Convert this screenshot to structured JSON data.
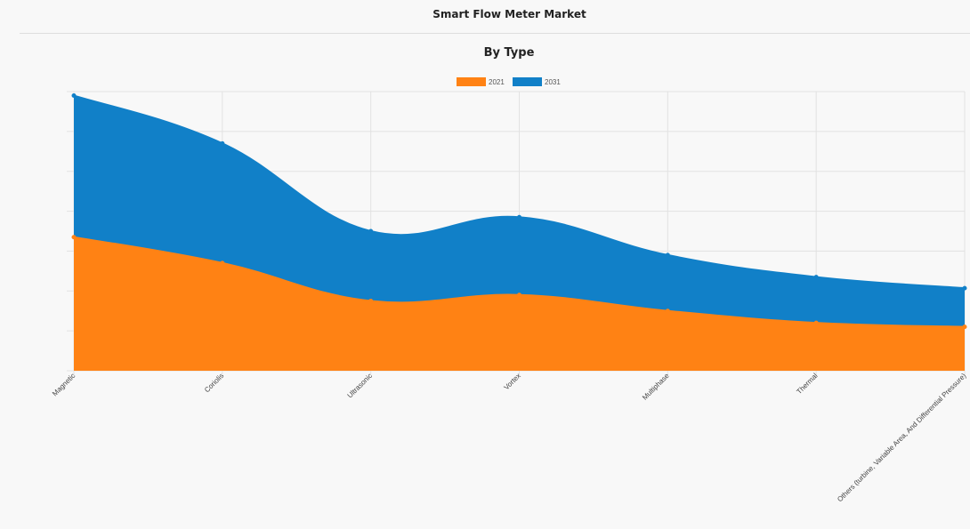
{
  "page": {
    "title": "Smart Flow Meter Market"
  },
  "colors": {
    "series_2021": "#ff8214",
    "series_2031": "#1180c8",
    "grid": "#e2e2e2",
    "background": "#f8f8f8"
  },
  "chart_data": {
    "type": "area",
    "title": "By Type",
    "stacked": true,
    "smooth": true,
    "xlabel": "",
    "ylabel": "",
    "y_tick_labels_visible": false,
    "grid": true,
    "legend": "top-center",
    "ylim": [
      0,
      7
    ],
    "categories": [
      "Magnetic",
      "Coriolis",
      "Ultrasonic",
      "Vortex",
      "Multiphase",
      "Thermal",
      "Others (turbine, Variable Area, And Differential Pressure)"
    ],
    "series": [
      {
        "name": "2021",
        "color": "#ff8214",
        "values": [
          3.35,
          2.7,
          1.75,
          1.9,
          1.5,
          1.2,
          1.1
        ]
      },
      {
        "name": "2031",
        "color": "#1180c8",
        "values": [
          3.55,
          3.0,
          1.75,
          1.95,
          1.4,
          1.15,
          0.97
        ]
      }
    ]
  }
}
